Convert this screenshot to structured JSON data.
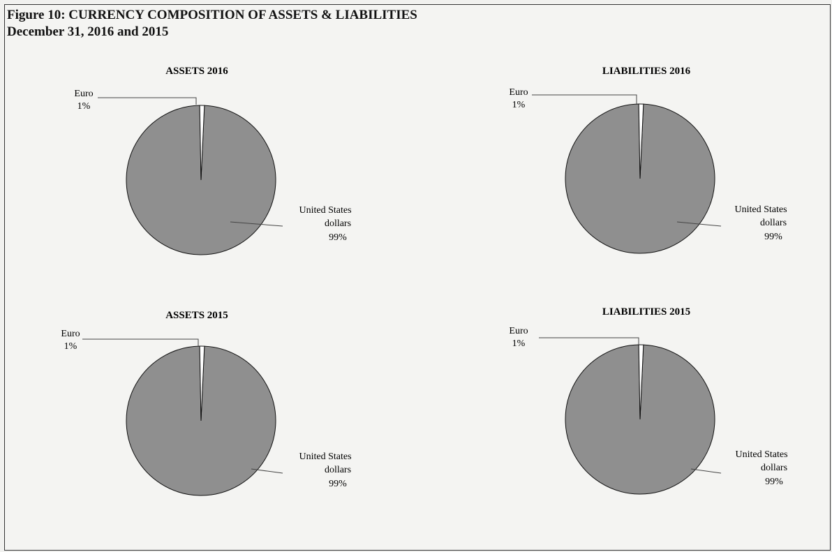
{
  "figure": {
    "title_line1": "Figure 10: CURRENCY COMPOSITION OF ASSETS & LIABILITIES",
    "title_line2": "December 31, 2016 and 2015"
  },
  "colors": {
    "major_slice": "#8f8f8f",
    "minor_slice": "#ffffff",
    "outline": "#111111"
  },
  "chart_data": [
    {
      "type": "pie",
      "title": "ASSETS 2016",
      "slices": [
        {
          "label_line1": "Euro",
          "label_line2": "",
          "value_label": "1%",
          "value": 1
        },
        {
          "label_line1": "United States",
          "label_line2": "dollars",
          "value_label": "99%",
          "value": 99
        }
      ]
    },
    {
      "type": "pie",
      "title": "LIABILITIES 2016",
      "slices": [
        {
          "label_line1": "Euro",
          "label_line2": "",
          "value_label": "1%",
          "value": 1
        },
        {
          "label_line1": "United States",
          "label_line2": "dollars",
          "value_label": "99%",
          "value": 99
        }
      ]
    },
    {
      "type": "pie",
      "title": "ASSETS 2015",
      "slices": [
        {
          "label_line1": "Euro",
          "label_line2": "",
          "value_label": "1%",
          "value": 1
        },
        {
          "label_line1": "United States",
          "label_line2": "dollars",
          "value_label": "99%",
          "value": 99
        }
      ]
    },
    {
      "type": "pie",
      "title": "LIABILITIES 2015",
      "slices": [
        {
          "label_line1": "Euro",
          "label_line2": "",
          "value_label": "1%",
          "value": 1
        },
        {
          "label_line1": "United States",
          "label_line2": "dollars",
          "value_label": "99%",
          "value": 99
        }
      ]
    }
  ]
}
